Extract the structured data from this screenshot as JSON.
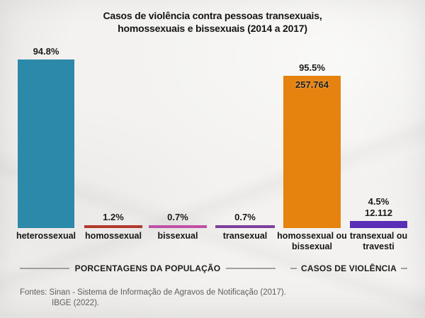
{
  "title": {
    "line1": "Casos de violência contra pessoas transexuais,",
    "line2": "homossexuais e bissexuais (2014 a 2017)"
  },
  "legend": {
    "population": "PORCENTAGENS DA POPULAÇÃO",
    "violence": "CASOS DE VIOLÊNCIA"
  },
  "footer": {
    "line1": "Fontes: Sinan - Sistema de Informação de Agravos de Notificação (2017).",
    "line2": "IBGE (2022)."
  },
  "chart_data": {
    "type": "bar",
    "title": "Casos de violência contra pessoas transexuais, homossexuais e bissexuais (2014 a 2017)",
    "groups": [
      {
        "name": "PORCENTAGENS DA POPULAÇÃO",
        "unit": "percent_of_population"
      },
      {
        "name": "CASOS DE VIOLÊNCIA",
        "unit": "violence_cases"
      }
    ],
    "grid": false,
    "bars": [
      {
        "category": "heterossexual",
        "group": 0,
        "value": 94.8,
        "value_label": "94.8%",
        "color": "#2d89a9"
      },
      {
        "category": "homossexual",
        "group": 0,
        "value": 1.2,
        "value_label": "1.2%",
        "color": "#b23a2b"
      },
      {
        "category": "bissexual",
        "group": 0,
        "value": 0.7,
        "value_label": "0.7%",
        "color": "#c04fa6"
      },
      {
        "category": "transexual",
        "group": 0,
        "value": 0.7,
        "value_label": "0.7%",
        "color": "#7e3f9d"
      },
      {
        "category": "homossexual ou bissexual",
        "group": 1,
        "value": 95.5,
        "value_label": "95.5%",
        "count": 257764,
        "count_label": "257.764",
        "color": "#e6820e"
      },
      {
        "category": "transexual ou travesti",
        "group": 1,
        "value": 4.5,
        "value_label": "4.5%",
        "count": 12112,
        "count_label": "12.112",
        "color": "#5a2eb5"
      }
    ]
  }
}
